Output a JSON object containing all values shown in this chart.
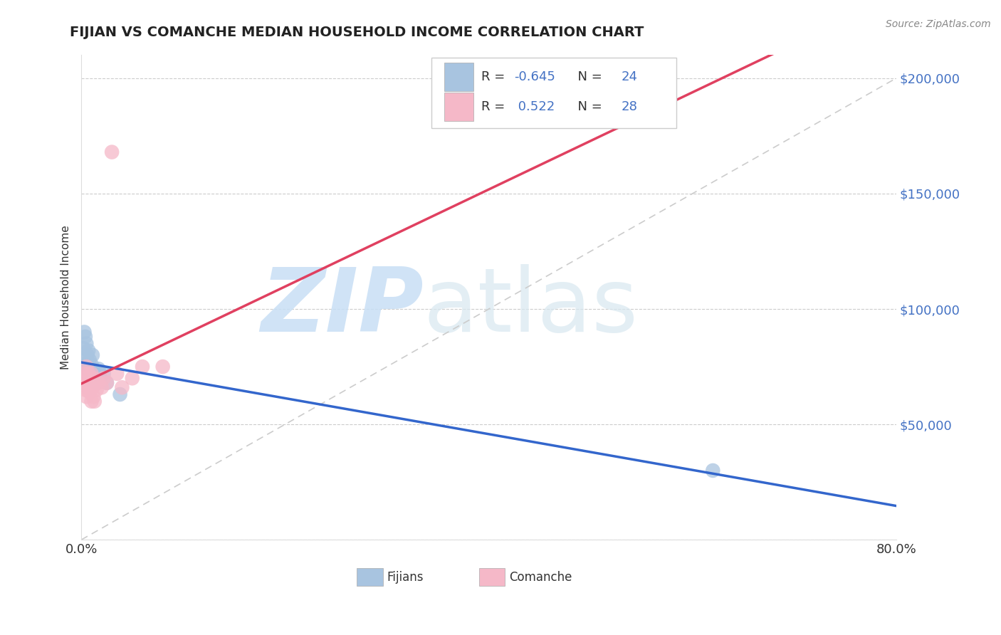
{
  "title": "FIJIAN VS COMANCHE MEDIAN HOUSEHOLD INCOME CORRELATION CHART",
  "source": "Source: ZipAtlas.com",
  "ylabel": "Median Household Income",
  "xlim": [
    0.0,
    0.8
  ],
  "ylim": [
    0,
    210000
  ],
  "background_color": "#ffffff",
  "grid_color": "#cccccc",
  "fijian_color": "#a8c4e0",
  "comanche_color": "#f5b8c8",
  "fijian_line_color": "#3366cc",
  "comanche_line_color": "#e04060",
  "ref_line_color": "#cccccc",
  "legend_fijian_r": -0.645,
  "legend_fijian_n": 24,
  "legend_comanche_r": 0.522,
  "legend_comanche_n": 28,
  "tick_color": "#4472c4",
  "watermark_zip": "ZIP",
  "watermark_atlas": "atlas",
  "fijian_scatter_x": [
    0.002,
    0.003,
    0.004,
    0.004,
    0.005,
    0.005,
    0.006,
    0.006,
    0.007,
    0.007,
    0.008,
    0.009,
    0.01,
    0.01,
    0.011,
    0.012,
    0.013,
    0.015,
    0.017,
    0.018,
    0.022,
    0.025,
    0.038,
    0.62
  ],
  "fijian_scatter_y": [
    83000,
    90000,
    88000,
    78000,
    85000,
    76000,
    80000,
    72000,
    82000,
    74000,
    78000,
    72000,
    76000,
    70000,
    80000,
    74000,
    72000,
    68000,
    74000,
    72000,
    72000,
    68000,
    63000,
    30000
  ],
  "comanche_scatter_x": [
    0.002,
    0.003,
    0.004,
    0.004,
    0.005,
    0.005,
    0.006,
    0.006,
    0.007,
    0.008,
    0.009,
    0.01,
    0.01,
    0.011,
    0.012,
    0.012,
    0.013,
    0.015,
    0.017,
    0.02,
    0.022,
    0.025,
    0.03,
    0.035,
    0.04,
    0.05,
    0.06,
    0.08
  ],
  "comanche_scatter_y": [
    68000,
    72000,
    65000,
    70000,
    75000,
    62000,
    68000,
    66000,
    72000,
    64000,
    68000,
    60000,
    72000,
    66000,
    70000,
    62000,
    60000,
    65000,
    68000,
    66000,
    70000,
    68000,
    168000,
    72000,
    66000,
    70000,
    75000,
    75000
  ]
}
